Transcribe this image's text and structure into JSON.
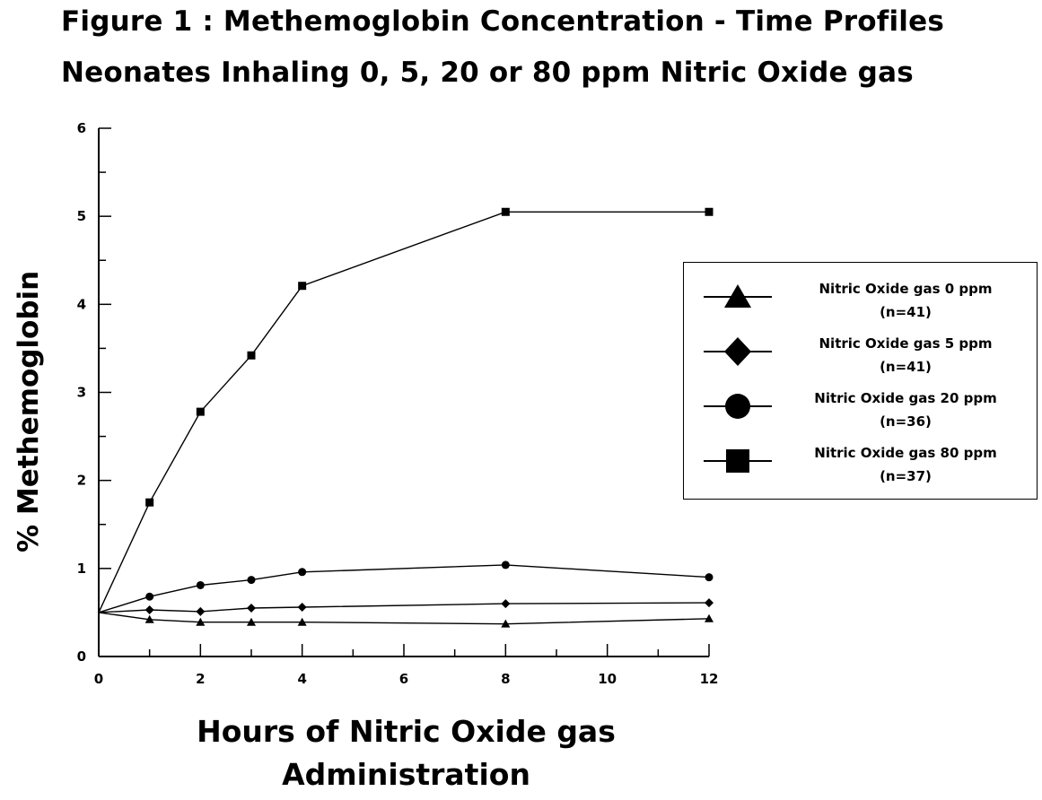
{
  "title": {
    "line1": "Figure 1 : Methemoglobin Concentration - Time Profiles",
    "line2": "Neonates Inhaling 0, 5, 20 or 80 ppm Nitric Oxide gas"
  },
  "chart_data": {
    "type": "line",
    "xlabel_line1": "Hours of Nitric Oxide gas",
    "xlabel_line2": "Administration",
    "ylabel": "% Methemoglobin",
    "xlim": [
      0,
      12
    ],
    "ylim": [
      0,
      6
    ],
    "xticks": [
      0,
      2,
      4,
      6,
      8,
      10,
      12
    ],
    "yticks": [
      0,
      1,
      2,
      3,
      4,
      5,
      6
    ],
    "grid": false,
    "legend_position": "right",
    "series": [
      {
        "name": "Nitric Oxide gas 0 ppm",
        "n_label": "(n=41)",
        "marker": "triangle",
        "x": [
          0,
          1,
          2,
          3,
          4,
          8,
          12
        ],
        "y": [
          0.5,
          0.42,
          0.39,
          0.39,
          0.39,
          0.37,
          0.43
        ]
      },
      {
        "name": "Nitric Oxide gas 5 ppm",
        "n_label": "(n=41)",
        "marker": "diamond",
        "x": [
          0,
          1,
          2,
          3,
          4,
          8,
          12
        ],
        "y": [
          0.5,
          0.53,
          0.51,
          0.55,
          0.56,
          0.6,
          0.61
        ]
      },
      {
        "name": "Nitric Oxide gas 20 ppm",
        "n_label": "(n=36)",
        "marker": "circle",
        "x": [
          0,
          1,
          2,
          3,
          4,
          8,
          12
        ],
        "y": [
          0.5,
          0.68,
          0.81,
          0.87,
          0.96,
          1.04,
          0.9
        ]
      },
      {
        "name": "Nitric Oxide gas 80 ppm",
        "n_label": "(n=37)",
        "marker": "square",
        "x": [
          0,
          1,
          2,
          3,
          4,
          8,
          12
        ],
        "y": [
          0.5,
          1.75,
          2.78,
          3.42,
          4.21,
          5.05,
          5.05
        ]
      }
    ]
  }
}
